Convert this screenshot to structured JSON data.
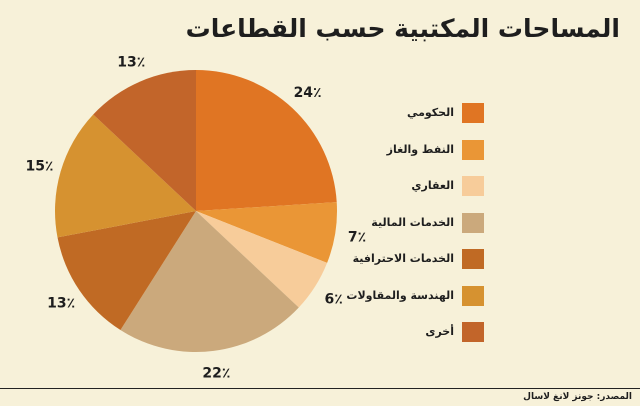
{
  "title": "المساحات المكتبية حسب القطاعات",
  "source": "المصدر: جونز لانغ لاسال",
  "chart_data": {
    "type": "pie",
    "slices": [
      {
        "label": "الحكومي",
        "value": 24,
        "display": "24٪",
        "color": "#e07523"
      },
      {
        "label": "النفط والغاز",
        "value": 7,
        "display": "7٪",
        "color": "#ea9636"
      },
      {
        "label": "العقاري",
        "value": 6,
        "display": "6٪",
        "color": "#f7cc9a"
      },
      {
        "label": "الخدمات المالية",
        "value": 22,
        "display": "22٪",
        "color": "#cba97c"
      },
      {
        "label": "الخدمات الاحترافية",
        "value": 13,
        "display": "13٪",
        "color": "#c06a24"
      },
      {
        "label": "الهندسة والمقاولات",
        "value": 15,
        "display": "15٪",
        "color": "#d69230"
      },
      {
        "label": "أخرى",
        "value": 13,
        "display": "13٪",
        "color": "#c2652a"
      }
    ]
  }
}
